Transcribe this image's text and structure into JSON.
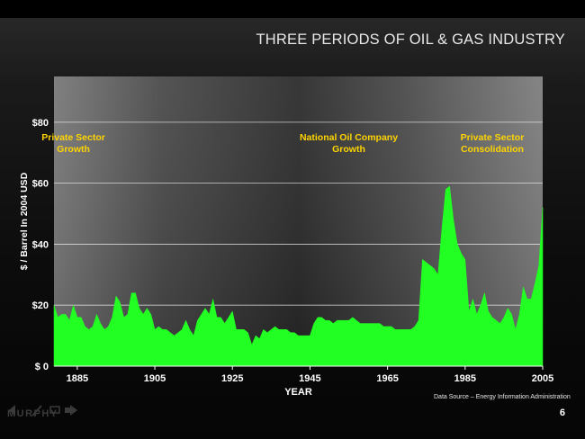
{
  "slide": {
    "title": "THREE PERIODS OF OIL & GAS INDUSTRY",
    "source": "Data Source – Energy Information Administration",
    "page_number": "6",
    "logo_text": "MURPHY"
  },
  "colors": {
    "fill": "#22ff22",
    "label": "#ffd400",
    "grid": "#ffffff",
    "axis_text": "#ffffff"
  },
  "chart_data": {
    "type": "area",
    "xlabel": "YEAR",
    "ylabel": "$ / Barrel In 2004 USD",
    "xlim": [
      1879,
      2005
    ],
    "ylim": [
      0,
      95
    ],
    "x_ticks": [
      1885,
      1905,
      1925,
      1945,
      1965,
      1985,
      2005
    ],
    "y_ticks": [
      0,
      20,
      40,
      60,
      80
    ],
    "y_tick_labels": [
      "$ 0",
      "$20",
      "$40",
      "$60",
      "$80"
    ],
    "grid": true,
    "annotations": [
      {
        "text": "Private Sector\nGrowth",
        "x": 1884,
        "y": 74
      },
      {
        "text": "National Oil Company\nGrowth",
        "x": 1955,
        "y": 74
      },
      {
        "text": "Private Sector\nConsolidation",
        "x": 1992,
        "y": 74
      }
    ],
    "series": [
      {
        "x": [
          1879,
          1880,
          1881,
          1882,
          1883,
          1884,
          1885,
          1886,
          1887,
          1888,
          1889,
          1890,
          1891,
          1892,
          1893,
          1894,
          1895,
          1896,
          1897,
          1898,
          1899,
          1900,
          1901,
          1902,
          1903,
          1904,
          1905,
          1906,
          1907,
          1908,
          1909,
          1910,
          1911,
          1912,
          1913,
          1914,
          1915,
          1916,
          1917,
          1918,
          1919,
          1920,
          1921,
          1922,
          1923,
          1924,
          1925,
          1926,
          1927,
          1928,
          1929,
          1930,
          1931,
          1932,
          1933,
          1934,
          1935,
          1936,
          1937,
          1938,
          1939,
          1940,
          1941,
          1942,
          1943,
          1944,
          1945,
          1946,
          1947,
          1948,
          1949,
          1950,
          1951,
          1952,
          1953,
          1954,
          1955,
          1956,
          1957,
          1958,
          1959,
          1960,
          1961,
          1962,
          1963,
          1964,
          1965,
          1966,
          1967,
          1968,
          1969,
          1970,
          1971,
          1972,
          1973,
          1974,
          1975,
          1976,
          1977,
          1978,
          1979,
          1980,
          1981,
          1982,
          1983,
          1984,
          1985,
          1986,
          1987,
          1988,
          1989,
          1990,
          1991,
          1992,
          1993,
          1994,
          1995,
          1996,
          1997,
          1998,
          1999,
          2000,
          2001,
          2002,
          2003,
          2004,
          2005
        ],
        "values": [
          20,
          16,
          17,
          17,
          15,
          20,
          16,
          16,
          13,
          12,
          13,
          17,
          14,
          12,
          13,
          16,
          23,
          21,
          16,
          17,
          24,
          24,
          19,
          17,
          19,
          17,
          12,
          13,
          12,
          12,
          11,
          10,
          11,
          12,
          15,
          12,
          10,
          15,
          17,
          19,
          17,
          22,
          16,
          16,
          14,
          16,
          18,
          12,
          12,
          12,
          11,
          7,
          10,
          9,
          12,
          11,
          12,
          13,
          12,
          12,
          12,
          11,
          11,
          10,
          10,
          10,
          10,
          14,
          16,
          16,
          15,
          15,
          14,
          15,
          15,
          15,
          15,
          16,
          15,
          14,
          14,
          14,
          14,
          14,
          14,
          13,
          13,
          13,
          12,
          12,
          12,
          12,
          12,
          13,
          15,
          35,
          34,
          33,
          32,
          30,
          45,
          58,
          59,
          48,
          40,
          37,
          35,
          18,
          22,
          17,
          20,
          24,
          18,
          16,
          15,
          14,
          16,
          19,
          17,
          12,
          17,
          26,
          22,
          22,
          27,
          33,
          52
        ]
      }
    ]
  }
}
